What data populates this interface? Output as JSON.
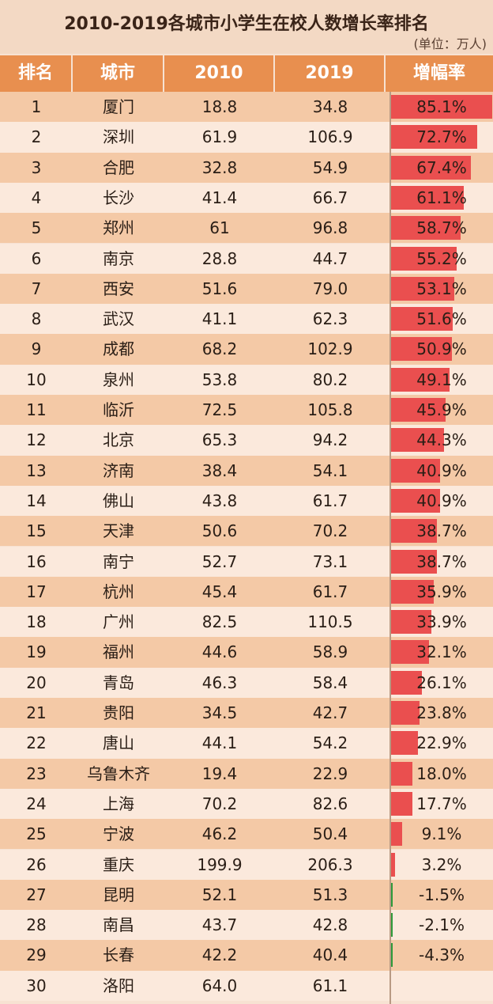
{
  "title": "2010-2019各城市小学生在校人数增长率排名",
  "unit": "(单位：万人)",
  "headers": [
    "排名",
    "城市",
    "2010",
    "2019",
    "增幅率"
  ],
  "colors": {
    "header": "#e88f4f",
    "positive_bar": "#ea4f4f",
    "negative_bar": "#2e9a3a"
  },
  "chart_data": {
    "type": "table",
    "title": "2010-2019各城市小学生在校人数增长率排名",
    "columns": [
      "排名",
      "城市",
      "2010",
      "2019",
      "增幅率"
    ],
    "rows": [
      {
        "rank": "1",
        "city": "厦门",
        "v2010": "18.8",
        "v2019": "34.8",
        "rate": "85.1%",
        "rate_value": 85.1
      },
      {
        "rank": "2",
        "city": "深圳",
        "v2010": "61.9",
        "v2019": "106.9",
        "rate": "72.7%",
        "rate_value": 72.7
      },
      {
        "rank": "3",
        "city": "合肥",
        "v2010": "32.8",
        "v2019": "54.9",
        "rate": "67.4%",
        "rate_value": 67.4
      },
      {
        "rank": "4",
        "city": "长沙",
        "v2010": "41.4",
        "v2019": "66.7",
        "rate": "61.1%",
        "rate_value": 61.1
      },
      {
        "rank": "5",
        "city": "郑州",
        "v2010": "61",
        "v2019": "96.8",
        "rate": "58.7%",
        "rate_value": 58.7
      },
      {
        "rank": "6",
        "city": "南京",
        "v2010": "28.8",
        "v2019": "44.7",
        "rate": "55.2%",
        "rate_value": 55.2
      },
      {
        "rank": "7",
        "city": "西安",
        "v2010": "51.6",
        "v2019": "79.0",
        "rate": "53.1%",
        "rate_value": 53.1
      },
      {
        "rank": "8",
        "city": "武汉",
        "v2010": "41.1",
        "v2019": "62.3",
        "rate": "51.6%",
        "rate_value": 51.6
      },
      {
        "rank": "9",
        "city": "成都",
        "v2010": "68.2",
        "v2019": "102.9",
        "rate": "50.9%",
        "rate_value": 50.9
      },
      {
        "rank": "10",
        "city": "泉州",
        "v2010": "53.8",
        "v2019": "80.2",
        "rate": "49.1%",
        "rate_value": 49.1
      },
      {
        "rank": "11",
        "city": "临沂",
        "v2010": "72.5",
        "v2019": "105.8",
        "rate": "45.9%",
        "rate_value": 45.9
      },
      {
        "rank": "12",
        "city": "北京",
        "v2010": "65.3",
        "v2019": "94.2",
        "rate": "44.3%",
        "rate_value": 44.3
      },
      {
        "rank": "13",
        "city": "济南",
        "v2010": "38.4",
        "v2019": "54.1",
        "rate": "40.9%",
        "rate_value": 40.9
      },
      {
        "rank": "14",
        "city": "佛山",
        "v2010": "43.8",
        "v2019": "61.7",
        "rate": "40.9%",
        "rate_value": 40.9
      },
      {
        "rank": "15",
        "city": "天津",
        "v2010": "50.6",
        "v2019": "70.2",
        "rate": "38.7%",
        "rate_value": 38.7
      },
      {
        "rank": "16",
        "city": "南宁",
        "v2010": "52.7",
        "v2019": "73.1",
        "rate": "38.7%",
        "rate_value": 38.7
      },
      {
        "rank": "17",
        "city": "杭州",
        "v2010": "45.4",
        "v2019": "61.7",
        "rate": "35.9%",
        "rate_value": 35.9
      },
      {
        "rank": "18",
        "city": "广州",
        "v2010": "82.5",
        "v2019": "110.5",
        "rate": "33.9%",
        "rate_value": 33.9
      },
      {
        "rank": "19",
        "city": "福州",
        "v2010": "44.6",
        "v2019": "58.9",
        "rate": "32.1%",
        "rate_value": 32.1
      },
      {
        "rank": "20",
        "city": "青岛",
        "v2010": "46.3",
        "v2019": "58.4",
        "rate": "26.1%",
        "rate_value": 26.1
      },
      {
        "rank": "21",
        "city": "贵阳",
        "v2010": "34.5",
        "v2019": "42.7",
        "rate": "23.8%",
        "rate_value": 23.8
      },
      {
        "rank": "22",
        "city": "唐山",
        "v2010": "44.1",
        "v2019": "54.2",
        "rate": "22.9%",
        "rate_value": 22.9
      },
      {
        "rank": "23",
        "city": "乌鲁木齐",
        "v2010": "19.4",
        "v2019": "22.9",
        "rate": "18.0%",
        "rate_value": 18.0
      },
      {
        "rank": "24",
        "city": "上海",
        "v2010": "70.2",
        "v2019": "82.6",
        "rate": "17.7%",
        "rate_value": 17.7
      },
      {
        "rank": "25",
        "city": "宁波",
        "v2010": "46.2",
        "v2019": "50.4",
        "rate": "9.1%",
        "rate_value": 9.1
      },
      {
        "rank": "26",
        "city": "重庆",
        "v2010": "199.9",
        "v2019": "206.3",
        "rate": "3.2%",
        "rate_value": 3.2
      },
      {
        "rank": "27",
        "city": "昆明",
        "v2010": "52.1",
        "v2019": "51.3",
        "rate": "-1.5%",
        "rate_value": -1.5
      },
      {
        "rank": "28",
        "city": "南昌",
        "v2010": "43.7",
        "v2019": "42.8",
        "rate": "-2.1%",
        "rate_value": -2.1
      },
      {
        "rank": "29",
        "city": "长春",
        "v2010": "42.2",
        "v2019": "40.4",
        "rate": "-4.3%",
        "rate_value": -4.3
      },
      {
        "rank": "30",
        "city": "洛阳",
        "v2010": "64.0",
        "v2019": "61.1",
        "rate": "",
        "rate_value": null
      }
    ]
  }
}
